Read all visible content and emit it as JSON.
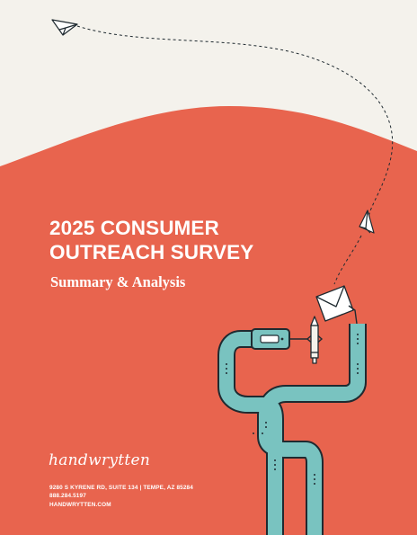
{
  "cover": {
    "title_line1": "2025 CONSUMER",
    "title_line2": "OUTREACH SURVEY",
    "subtitle": "Summary & Analysis"
  },
  "brand": {
    "logo_text": "handwrytten"
  },
  "contact": {
    "address": "9280 S KYRENE RD, SUITE 134 | TEMPE, AZ 85284",
    "phone": "888.284.5197",
    "website": "HANDWRYTTEN.COM"
  },
  "colors": {
    "background": "#f4f2ec",
    "accent": "#e8644e",
    "pipe": "#79c3c0",
    "ink": "#1f2a30"
  },
  "icons": [
    "paper-plane-icon",
    "envelope-icon",
    "pen-icon",
    "pipe-machine-illustration"
  ]
}
